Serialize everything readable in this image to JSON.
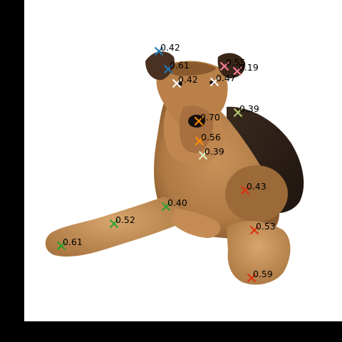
{
  "figure": {
    "frame_color": "#000000",
    "canvas_color": "#ffffff",
    "subject": "dog-photo"
  },
  "keypoints": [
    {
      "id": "kp-1",
      "score": "0.42",
      "color": "#1f77b4"
    },
    {
      "id": "kp-2",
      "score": "0.61",
      "color": "#1f77b4"
    },
    {
      "id": "kp-3",
      "score": "0.42",
      "color": "#ffffff"
    },
    {
      "id": "kp-4",
      "score": "0.55",
      "color": "#ff7f9e"
    },
    {
      "id": "kp-5",
      "score": "0.19",
      "color": "#ff7f9e"
    },
    {
      "id": "kp-6",
      "score": "0.47",
      "color": "#ffffff"
    },
    {
      "id": "kp-7",
      "score": "0.39",
      "color": "#b5cf6b"
    },
    {
      "id": "kp-8",
      "score": "0.70",
      "color": "#ff8c00"
    },
    {
      "id": "kp-9",
      "score": "0.56",
      "color": "#ff8c00"
    },
    {
      "id": "kp-10",
      "score": "0.39",
      "color": "#d9f0c8"
    },
    {
      "id": "kp-11",
      "score": "0.43",
      "color": "#e03010"
    },
    {
      "id": "kp-12",
      "score": "0.40",
      "color": "#2ca02c"
    },
    {
      "id": "kp-13",
      "score": "0.52",
      "color": "#2ca02c"
    },
    {
      "id": "kp-14",
      "score": "0.61",
      "color": "#2ca02c"
    },
    {
      "id": "kp-15",
      "score": "0.53",
      "color": "#e03010"
    },
    {
      "id": "kp-16",
      "score": "0.59",
      "color": "#e03010"
    }
  ]
}
